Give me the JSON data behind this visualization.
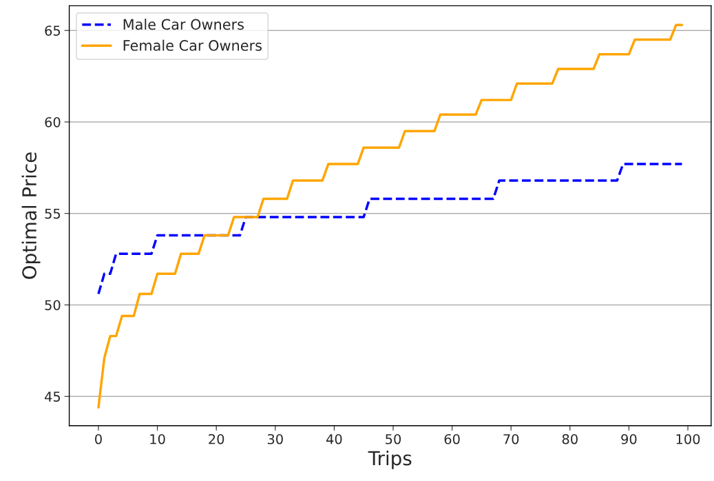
{
  "chart_data": {
    "type": "line",
    "xlabel": "Trips",
    "ylabel": "Optimal Price",
    "xlim": [
      -4.95,
      103.95
    ],
    "ylim": [
      43.4,
      66.35
    ],
    "xticks": [
      0,
      10,
      20,
      30,
      40,
      50,
      60,
      70,
      80,
      90,
      100
    ],
    "yticks": [
      45,
      50,
      55,
      60,
      65
    ],
    "grid": "y",
    "legend": "top left",
    "series": [
      {
        "name": "Male Car Owners",
        "color": "#0000ff",
        "line_style": "dashed",
        "x": [
          0,
          1,
          2,
          3,
          9,
          10,
          24,
          25,
          45,
          46,
          67,
          68,
          88,
          89,
          99
        ],
        "values": [
          50.6,
          51.7,
          51.7,
          52.8,
          52.8,
          53.8,
          53.8,
          54.8,
          54.8,
          55.8,
          55.8,
          56.8,
          56.8,
          57.7,
          57.7
        ]
      },
      {
        "name": "Female Car Owners",
        "color": "#ffa500",
        "line_style": "solid",
        "x": [
          0,
          1,
          2,
          3,
          4,
          6,
          7,
          9,
          10,
          13,
          14,
          17,
          18,
          22,
          23,
          27,
          28,
          32,
          33,
          38,
          39,
          44,
          45,
          51,
          52,
          57,
          58,
          64,
          65,
          70,
          71,
          77,
          78,
          84,
          85,
          90,
          91,
          97,
          98,
          99
        ],
        "values": [
          44.4,
          47.1,
          48.3,
          48.3,
          49.4,
          49.4,
          50.6,
          50.6,
          51.7,
          51.7,
          52.8,
          52.8,
          53.8,
          53.8,
          54.8,
          54.8,
          55.8,
          55.8,
          56.8,
          56.8,
          57.7,
          57.7,
          58.6,
          58.6,
          59.5,
          59.5,
          60.4,
          60.4,
          61.2,
          61.2,
          62.1,
          62.1,
          62.9,
          62.9,
          63.7,
          63.7,
          64.5,
          64.5,
          65.3,
          65.3
        ]
      }
    ]
  }
}
